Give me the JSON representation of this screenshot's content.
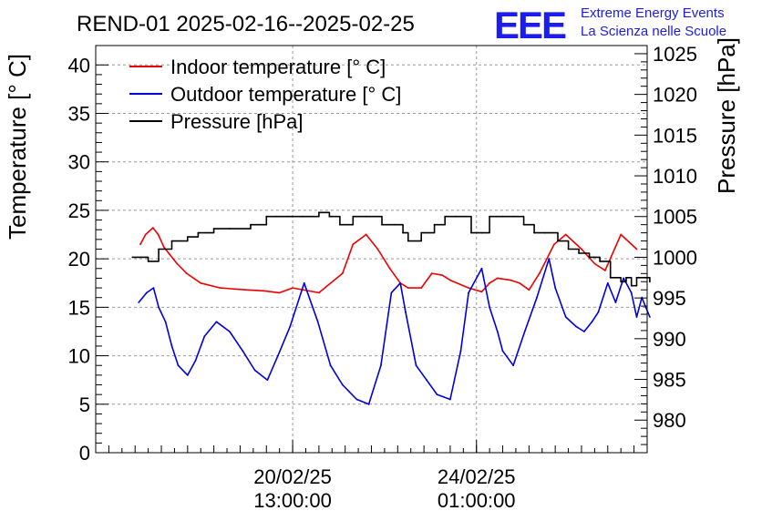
{
  "header": {
    "title": "REND-01 2025-02-16--2025-02-25",
    "logo_text": "EEE",
    "org_line1": "Extreme Energy Events",
    "org_line2": "La Scienza nelle Scuole"
  },
  "colors": {
    "indoor": "#ee0000",
    "outdoor": "#0000dd",
    "pressure": "#000000",
    "logo": "#1c1cee",
    "grid": "#999999"
  },
  "chart_data": {
    "type": "line",
    "title": "REND-01 2025-02-16--2025-02-25",
    "xlabel": "",
    "ylabel": "Temperature [° C]",
    "y2label": "Pressure [hPa]",
    "xlim": [
      -3.75,
      6.75
    ],
    "ylim": [
      0,
      42
    ],
    "y2lim": [
      976,
      1026
    ],
    "grid": true,
    "legend": "top-left",
    "x_unit": "days since 20/02/25 13:00",
    "x_ticks": [
      {
        "value": 0,
        "line1": "20/02/25",
        "line2": "13:00:00"
      },
      {
        "value": 3.5,
        "line1": "24/02/25",
        "line2": "01:00:00"
      }
    ],
    "y_ticks": [
      "0",
      "5",
      "10",
      "15",
      "20",
      "25",
      "30",
      "35",
      "40"
    ],
    "y2_ticks": [
      "980",
      "985",
      "990",
      "995",
      "1000",
      "1005",
      "1010",
      "1015",
      "1020",
      "1025"
    ],
    "series": [
      {
        "name": "Indoor temperature [° C]",
        "axis": "left",
        "x": [
          -2.9,
          -2.8,
          -2.66,
          -2.56,
          -2.45,
          -2.35,
          -2.2,
          -2.02,
          -1.75,
          -1.38,
          -0.9,
          -0.55,
          -0.25,
          0.0,
          0.5,
          0.95,
          1.15,
          1.4,
          1.62,
          1.85,
          2.05,
          2.2,
          2.45,
          2.65,
          2.85,
          3.0,
          3.35,
          3.6,
          3.75,
          3.9,
          4.15,
          4.32,
          4.5,
          4.7,
          4.98,
          5.2,
          5.5,
          5.75,
          5.95,
          6.25,
          6.55
        ],
        "values": [
          21.5,
          22.5,
          23.2,
          22.5,
          21.2,
          20.5,
          19.5,
          18.5,
          17.5,
          17.0,
          16.8,
          16.7,
          16.5,
          17.0,
          16.5,
          18.5,
          21.5,
          22.5,
          21.0,
          19.0,
          17.5,
          17.0,
          17.0,
          18.5,
          18.3,
          17.8,
          17.0,
          16.6,
          17.5,
          18.0,
          17.8,
          17.5,
          16.8,
          18.5,
          21.5,
          22.5,
          21.0,
          19.5,
          18.8,
          22.5,
          21.0
        ]
      },
      {
        "name": "Outdoor temperature [° C]",
        "axis": "left",
        "x": [
          -2.93,
          -2.78,
          -2.65,
          -2.55,
          -2.42,
          -2.3,
          -2.18,
          -2.0,
          -1.85,
          -1.68,
          -1.45,
          -1.2,
          -0.95,
          -0.72,
          -0.48,
          -0.28,
          -0.05,
          0.22,
          0.48,
          0.72,
          0.95,
          1.22,
          1.45,
          1.68,
          1.88,
          2.05,
          2.15,
          2.35,
          2.55,
          2.75,
          3.0,
          3.2,
          3.35,
          3.6,
          3.75,
          3.9,
          4.0,
          4.2,
          4.42,
          4.65,
          4.88,
          5.0,
          5.2,
          5.4,
          5.55,
          5.7,
          5.82,
          6.0,
          6.15,
          6.3,
          6.45,
          6.55,
          6.65,
          6.8
        ],
        "values": [
          15.5,
          16.5,
          17.0,
          15.0,
          13.5,
          11.0,
          9.0,
          8.0,
          9.5,
          12.0,
          13.5,
          12.5,
          10.5,
          8.5,
          7.5,
          10.0,
          13.0,
          17.5,
          13.5,
          9.0,
          7.0,
          5.5,
          5.0,
          9.0,
          16.5,
          17.5,
          14.5,
          9.0,
          7.5,
          6.0,
          5.5,
          10.5,
          16.5,
          19.0,
          15.0,
          12.5,
          10.5,
          9.0,
          12.5,
          16.0,
          20.0,
          17.0,
          14.0,
          13.0,
          12.5,
          13.5,
          14.5,
          17.5,
          15.5,
          18.0,
          16.5,
          14.0,
          16.0,
          14.0
        ]
      },
      {
        "name": "Pressure [hPa]",
        "axis": "right",
        "x": [
          -3.05,
          -2.75,
          -2.55,
          -2.3,
          -2.0,
          -1.8,
          -1.5,
          -1.2,
          -0.8,
          -0.5,
          -0.3,
          -0.1,
          0.2,
          0.5,
          0.7,
          0.9,
          1.15,
          1.4,
          1.7,
          1.95,
          2.1,
          2.2,
          2.45,
          2.7,
          2.9,
          3.1,
          3.4,
          3.6,
          3.75,
          4.0,
          4.2,
          4.4,
          4.6,
          4.8,
          5.05,
          5.25,
          5.45,
          5.65,
          5.85,
          6.05,
          6.25,
          6.35,
          6.45,
          6.55,
          6.8
        ],
        "values": [
          1000,
          999.5,
          1001,
          1002,
          1002.5,
          1003,
          1003.5,
          1003.5,
          1004,
          1005,
          1005,
          1005,
          1005,
          1005.5,
          1005,
          1004,
          1005,
          1005,
          1004,
          1004,
          1003,
          1002,
          1003,
          1004,
          1005,
          1005,
          1003,
          1003,
          1005,
          1005,
          1005,
          1004,
          1003,
          1003,
          1002,
          1001,
          1000.5,
          1000,
          999.5,
          997.5,
          997,
          997.5,
          996.5,
          997.5,
          997
        ]
      }
    ]
  }
}
